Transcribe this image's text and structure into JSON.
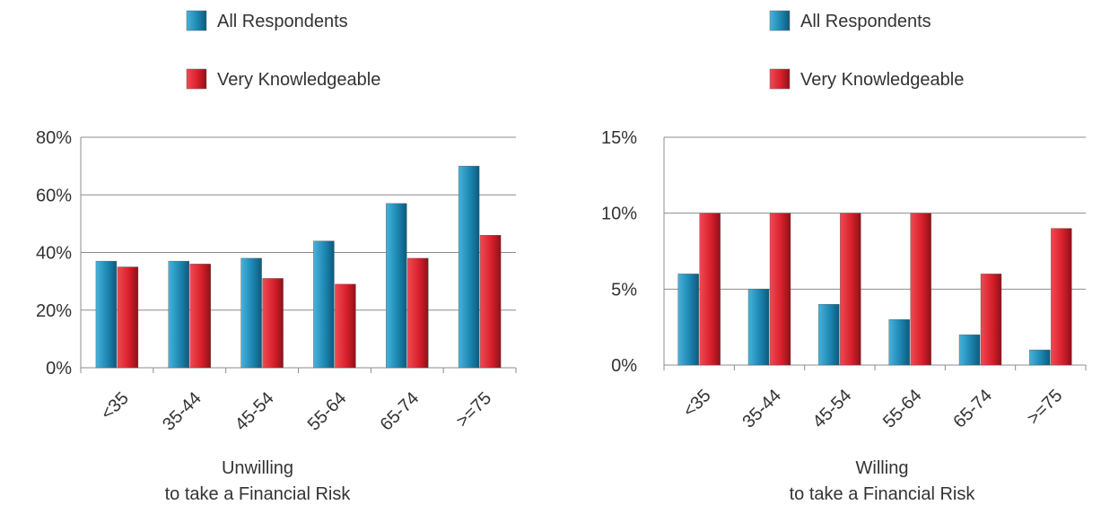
{
  "colors": {
    "all_respondents": "#1d86b2",
    "very_knowledgeable": "#d8202b",
    "gridline": "#8c8c8c",
    "text": "#333333"
  },
  "chart_data": [
    {
      "type": "bar",
      "title": "",
      "xlabel": "Unwilling\nto take a Financial Risk",
      "ylabel": "",
      "categories": [
        "<35",
        "35-44",
        "45-54",
        "55-64",
        "65-74",
        ">=75"
      ],
      "series": [
        {
          "name": "All Respondents",
          "values": [
            37,
            37,
            38,
            44,
            57,
            70
          ]
        },
        {
          "name": "Very Knowledgeable",
          "values": [
            35,
            36,
            31,
            29,
            38,
            46
          ]
        }
      ],
      "ylim": [
        0,
        80
      ],
      "yticks": [
        0,
        20,
        40,
        60,
        80
      ],
      "ytick_labels": [
        "0%",
        "20%",
        "40%",
        "60%",
        "80%"
      ],
      "grid": true,
      "legend_position": "top"
    },
    {
      "type": "bar",
      "title": "",
      "xlabel": "Willing\nto take a Financial Risk",
      "ylabel": "",
      "categories": [
        "<35",
        "35-44",
        "45-54",
        "55-64",
        "65-74",
        ">=75"
      ],
      "series": [
        {
          "name": "All Respondents",
          "values": [
            6,
            5,
            4,
            3,
            2,
            1
          ]
        },
        {
          "name": "Very Knowledgeable",
          "values": [
            10,
            10,
            10,
            10,
            6,
            9
          ]
        }
      ],
      "ylim": [
        0,
        15
      ],
      "yticks": [
        0,
        5,
        10,
        15
      ],
      "ytick_labels": [
        "0%",
        "5%",
        "10%",
        "15%"
      ],
      "grid": true,
      "legend_position": "top"
    }
  ]
}
